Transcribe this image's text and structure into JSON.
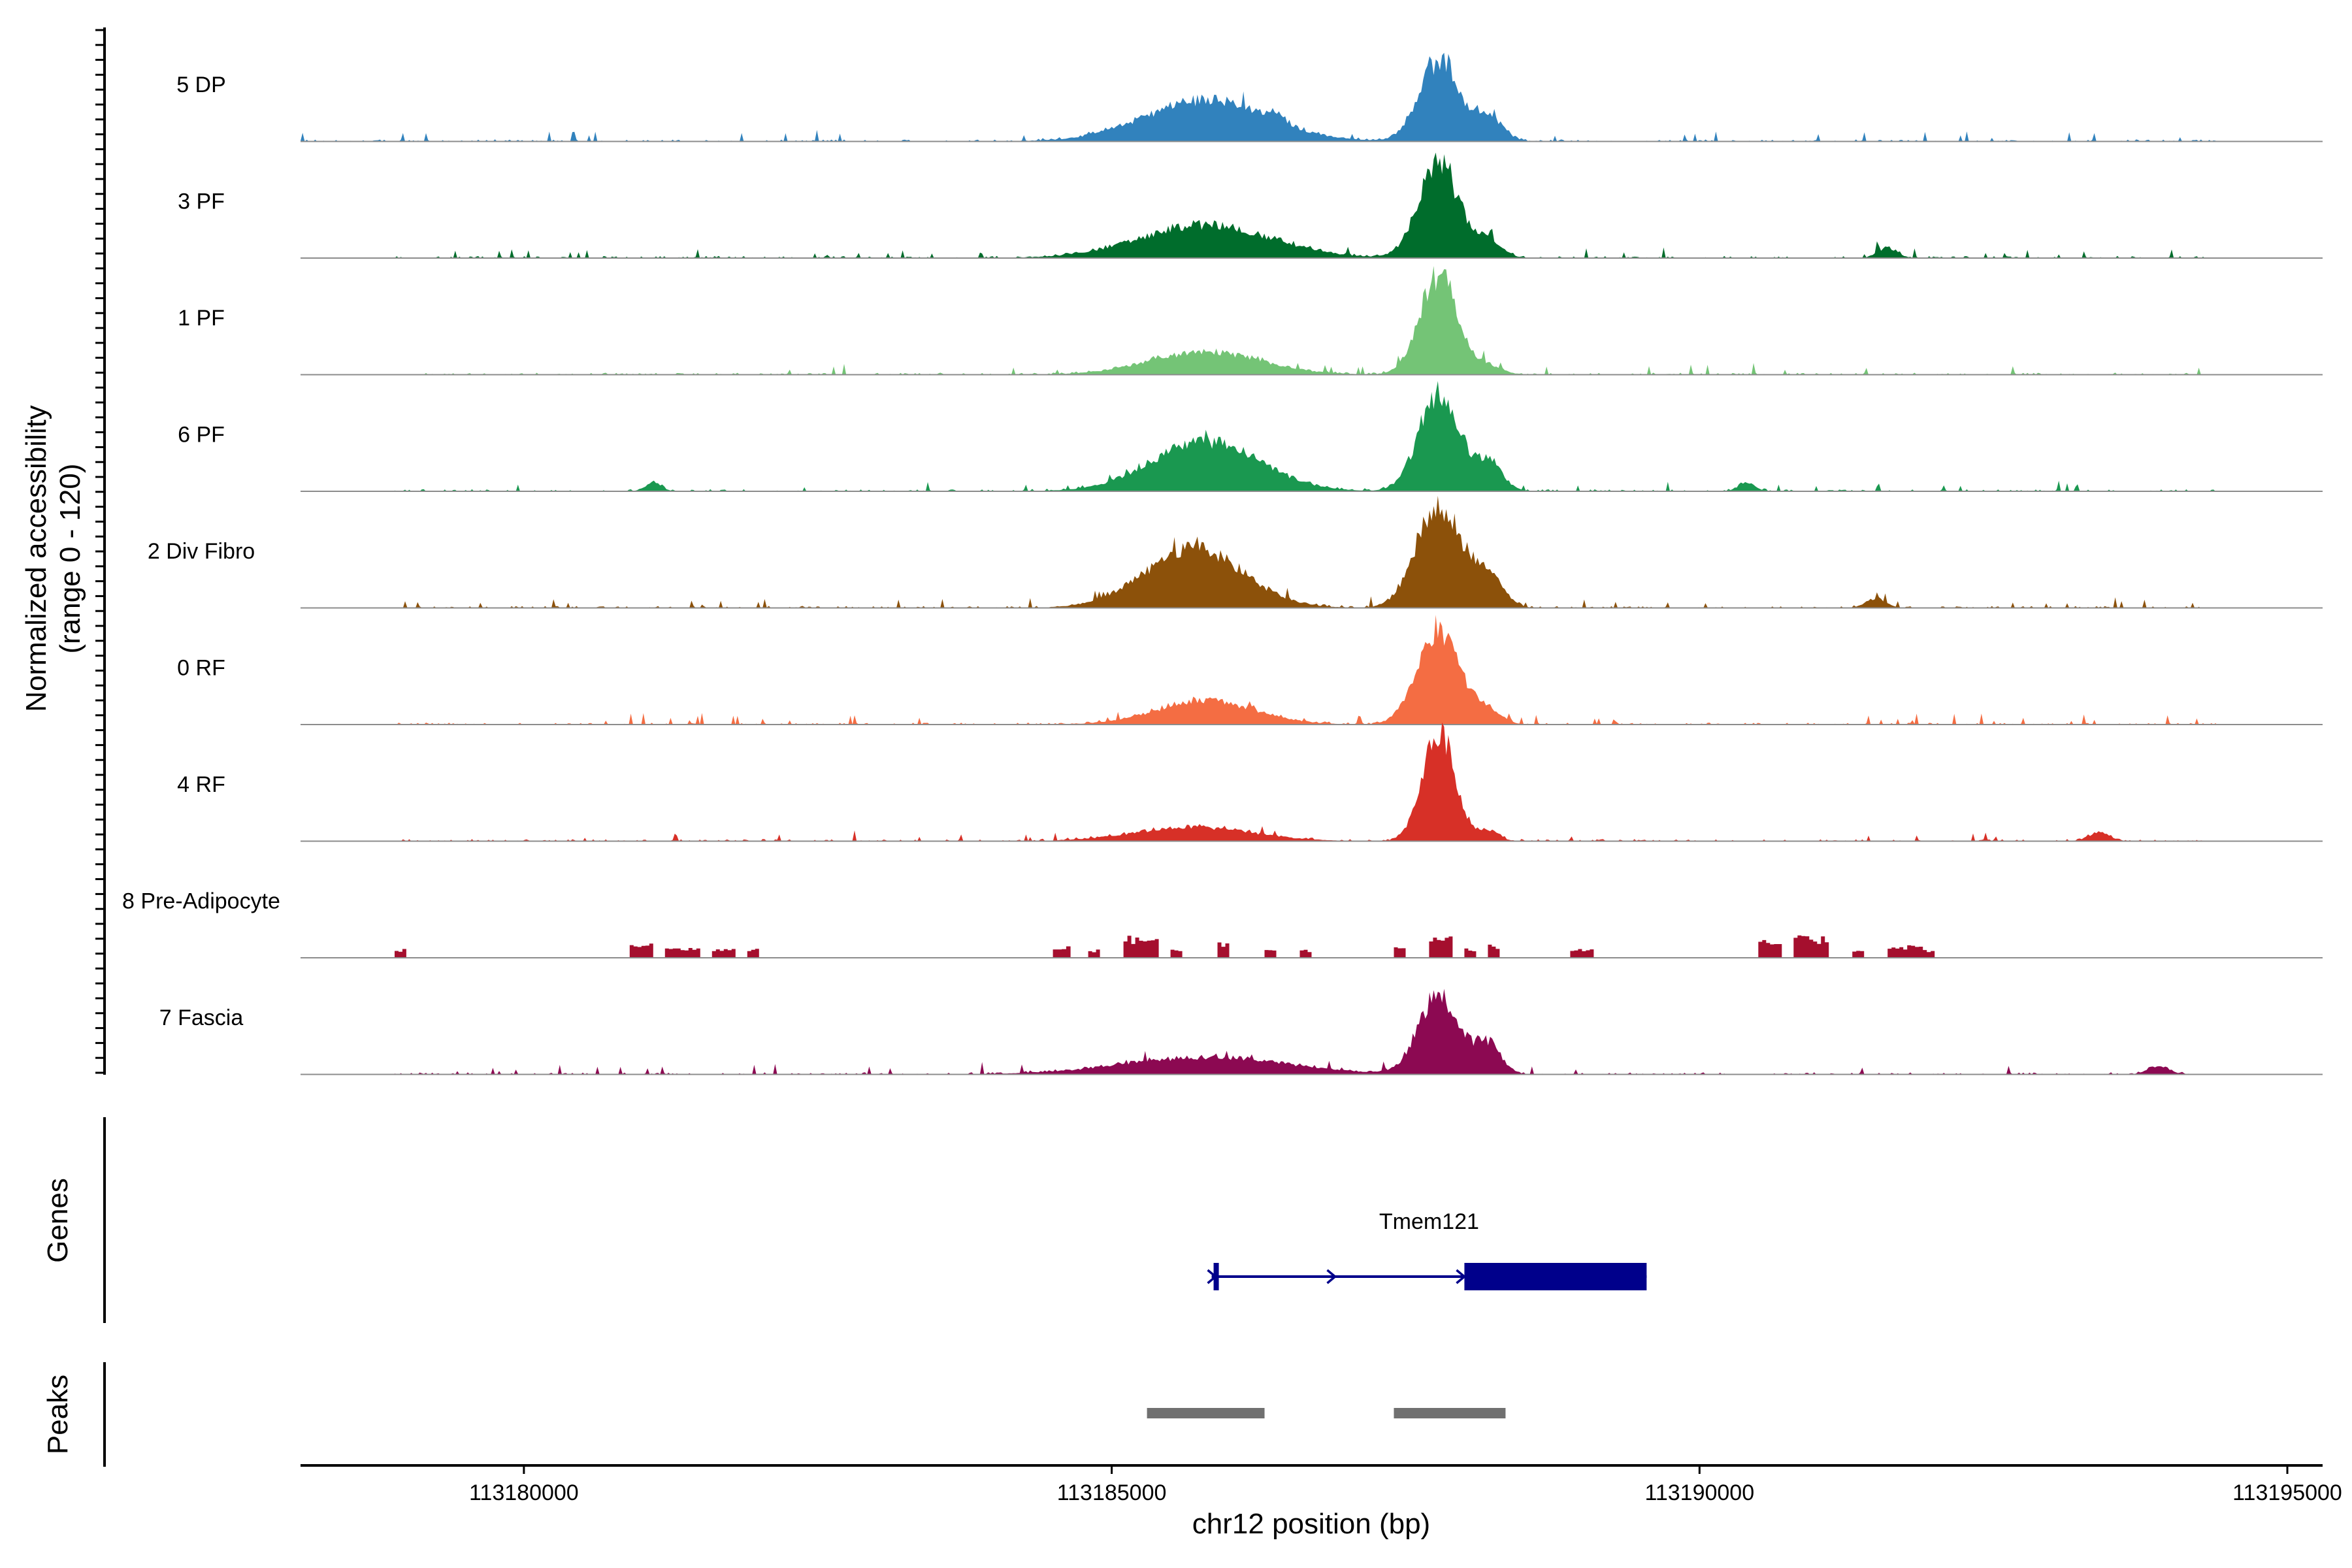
{
  "chart_data": {
    "type": "area",
    "title": "",
    "xlabel": "chr12 position (bp)",
    "ylabel_line1": "Normalized accessibility",
    "ylabel_line2": "(range 0 - 120)",
    "xlim": [
      113178100,
      113195300
    ],
    "ylim": [
      0,
      120
    ],
    "xticks": [
      113180000,
      113185000,
      113190000,
      113195000
    ],
    "xtick_labels": [
      "113180000",
      "113185000",
      "113190000",
      "113195000"
    ],
    "tracks": [
      {
        "name": "5 DP",
        "color": "#3182bd",
        "style": "smooth",
        "range": [
          113178100,
          113194400
        ],
        "peaks": [
          [
            113185800,
            48,
            520
          ],
          [
            113187780,
            92,
            170
          ],
          [
            113188200,
            30,
            120
          ],
          [
            113186400,
            8,
            80
          ]
        ]
      },
      {
        "name": "3 PF",
        "color": "#006d2c",
        "style": "smooth",
        "range": [
          113178900,
          113194300
        ],
        "peaks": [
          [
            113185800,
            38,
            560
          ],
          [
            113187780,
            108,
            170
          ],
          [
            113188200,
            18,
            120
          ],
          [
            113191600,
            12,
            80
          ]
        ]
      },
      {
        "name": "1 PF",
        "color": "#74c476",
        "style": "smooth",
        "range": [
          113178900,
          113194300
        ],
        "peaks": [
          [
            113185800,
            26,
            480
          ],
          [
            113187780,
            115,
            160
          ],
          [
            113188200,
            10,
            120
          ]
        ]
      },
      {
        "name": "6 PF",
        "color": "#1a9850",
        "style": "smooth",
        "range": [
          113178900,
          113194400
        ],
        "peaks": [
          [
            113185800,
            58,
            460
          ],
          [
            113187780,
            112,
            170
          ],
          [
            113188200,
            32,
            120
          ],
          [
            113181100,
            10,
            70
          ],
          [
            113190400,
            10,
            70
          ]
        ]
      },
      {
        "name": "2 Div Fibro",
        "color": "#8c510a",
        "style": "smooth",
        "range": [
          113178900,
          113194300
        ],
        "peaks": [
          [
            113185700,
            68,
            420
          ],
          [
            113187780,
            120,
            190
          ],
          [
            113188200,
            34,
            130
          ],
          [
            113191500,
            10,
            90
          ]
        ]
      },
      {
        "name": "0 RF",
        "color": "#f46d43",
        "style": "smooth",
        "range": [
          113178900,
          113194400
        ],
        "peaks": [
          [
            113185800,
            28,
            420
          ],
          [
            113187780,
            110,
            180
          ],
          [
            113188200,
            14,
            120
          ]
        ]
      },
      {
        "name": "4 RF",
        "color": "#d73027",
        "style": "smooth",
        "range": [
          113178900,
          113194300
        ],
        "peaks": [
          [
            113185700,
            16,
            500
          ],
          [
            113187780,
            125,
            140
          ],
          [
            113188200,
            12,
            90
          ],
          [
            113193400,
            10,
            90
          ]
        ]
      },
      {
        "name": "8 Pre-Adipocyte",
        "color": "#a50f2e",
        "style": "blocky",
        "range": [
          113178900,
          113192100
        ],
        "blocks": [
          [
            113178900,
            113179000,
            10
          ],
          [
            113180900,
            113181100,
            18
          ],
          [
            113181200,
            113181500,
            12
          ],
          [
            113181600,
            113181800,
            12
          ],
          [
            113181900,
            113182000,
            12
          ],
          [
            113184500,
            113184650,
            15
          ],
          [
            113184800,
            113184900,
            10
          ],
          [
            113185100,
            113185400,
            25
          ],
          [
            113185500,
            113185600,
            10
          ],
          [
            113185900,
            113186000,
            20
          ],
          [
            113186300,
            113186400,
            10
          ],
          [
            113186600,
            113186700,
            10
          ],
          [
            113187400,
            113187500,
            15
          ],
          [
            113187700,
            113187900,
            28
          ],
          [
            113188000,
            113188100,
            12
          ],
          [
            113188200,
            113188300,
            15
          ],
          [
            113188900,
            113189100,
            10
          ],
          [
            113190500,
            113190700,
            20
          ],
          [
            113190800,
            113191100,
            25
          ],
          [
            113191300,
            113191400,
            10
          ],
          [
            113191600,
            113191900,
            15
          ],
          [
            113191900,
            113192000,
            10
          ]
        ]
      },
      {
        "name": "7 Fascia",
        "color": "#8c0952",
        "style": "smooth",
        "range": [
          113178900,
          113194200
        ],
        "peaks": [
          [
            113185800,
            20,
            700
          ],
          [
            113187780,
            90,
            170
          ],
          [
            113188200,
            35,
            110
          ],
          [
            113193900,
            10,
            90
          ]
        ]
      }
    ],
    "genes_label": "Genes",
    "gene": {
      "name": "Tmem121",
      "color": "#00008b",
      "start": 113185850,
      "end": 113189550,
      "thick_start": 113188000,
      "thick_end": 113189550,
      "strand": "+"
    },
    "peaks_label": "Peaks",
    "peak_color": "#707070",
    "peak_regions": [
      [
        113185300,
        113186300
      ],
      [
        113187400,
        113188350
      ]
    ]
  }
}
